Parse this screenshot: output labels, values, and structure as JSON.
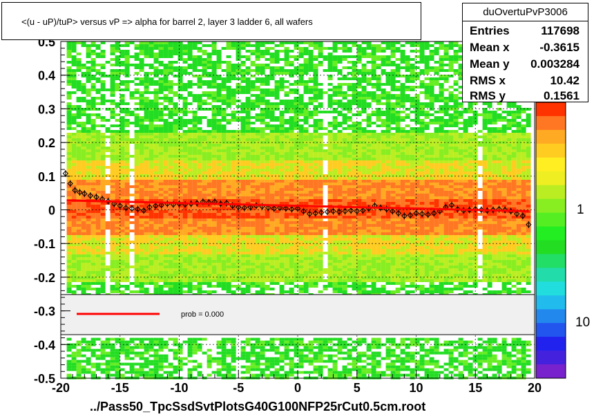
{
  "title": "<(u - uP)/tuP> versus   vP => alpha for barrel 2, layer 3 ladder 6, all wafers",
  "x_axis_title": "../Pass50_TpcSsdSvtPlotsG40G100NFP25rCut0.5cm.root",
  "stats": {
    "name": "duOvertuPvP3006",
    "rows": [
      {
        "label": "Entries",
        "value": "117698"
      },
      {
        "label": "Mean x",
        "value": "-0.3615"
      },
      {
        "label": "Mean y",
        "value": "0.003284"
      },
      {
        "label": "RMS x",
        "value": "10.42"
      },
      {
        "label": "RMS y",
        "value": "0.1561"
      }
    ]
  },
  "fit_legend": {
    "text": "prob = 0.000"
  },
  "colors": {
    "fit_line": "#ff0000",
    "low": "#22dd22",
    "mid": "#bbee22",
    "high": "#ff7722",
    "peak": "#ff3300",
    "legend_bg": "#f0f0f0"
  },
  "chart_data": {
    "type": "heatmap",
    "xlim": [
      -20,
      20
    ],
    "ylim": [
      -0.5,
      0.5
    ],
    "x_ticks": [
      -20,
      -15,
      -10,
      -5,
      0,
      5,
      10,
      15,
      20
    ],
    "x_tick_labels": [
      "-20",
      "-15",
      "-10",
      "-5",
      "0",
      "5",
      "10",
      "15",
      "20"
    ],
    "y_ticks": [
      -0.5,
      -0.4,
      -0.3,
      -0.2,
      -0.1,
      0,
      0.1,
      0.2,
      0.3,
      0.4,
      0.5
    ],
    "y_tick_labels": [
      "-0.5",
      "-0.4",
      "-0.3",
      "-0.2",
      "-0.1",
      "0",
      "0.1",
      "0.2",
      "0.3",
      "0.4",
      "0.5"
    ],
    "grid": true,
    "palette_labels": [
      "1",
      "10"
    ],
    "profile_points": [
      {
        "x": -19.6,
        "y": 0.108
      },
      {
        "x": -19.2,
        "y": 0.078
      },
      {
        "x": -18.8,
        "y": 0.058
      },
      {
        "x": -18.4,
        "y": 0.052
      },
      {
        "x": -18.0,
        "y": 0.048
      },
      {
        "x": -17.5,
        "y": 0.042
      },
      {
        "x": -17.0,
        "y": 0.038
      },
      {
        "x": -16.5,
        "y": 0.032
      },
      {
        "x": -16.0,
        "y": 0.026
      },
      {
        "x": -15.5,
        "y": 0.018
      },
      {
        "x": -15.0,
        "y": 0.012
      },
      {
        "x": -14.5,
        "y": 0.006
      },
      {
        "x": -14.0,
        "y": 0.004
      },
      {
        "x": -13.5,
        "y": 0.002
      },
      {
        "x": -13.0,
        "y": -0.002
      },
      {
        "x": -12.5,
        "y": 0.008
      },
      {
        "x": -12.0,
        "y": 0.012
      },
      {
        "x": -11.5,
        "y": 0.014
      },
      {
        "x": -11.0,
        "y": 0.018
      },
      {
        "x": -10.5,
        "y": 0.016
      },
      {
        "x": -10.0,
        "y": 0.018
      },
      {
        "x": -9.5,
        "y": 0.016
      },
      {
        "x": -9.0,
        "y": 0.018
      },
      {
        "x": -8.5,
        "y": 0.02
      },
      {
        "x": -8.0,
        "y": 0.024
      },
      {
        "x": -7.5,
        "y": 0.022
      },
      {
        "x": -7.0,
        "y": 0.024
      },
      {
        "x": -6.5,
        "y": 0.018
      },
      {
        "x": -6.0,
        "y": 0.02
      },
      {
        "x": -5.5,
        "y": 0.012
      },
      {
        "x": -5.0,
        "y": 0.008
      },
      {
        "x": -4.5,
        "y": 0.006
      },
      {
        "x": -4.0,
        "y": 0.008
      },
      {
        "x": -3.5,
        "y": 0.012
      },
      {
        "x": -3.0,
        "y": 0.01
      },
      {
        "x": -2.5,
        "y": 0.006
      },
      {
        "x": -2.0,
        "y": 0.004
      },
      {
        "x": -1.5,
        "y": 0.006
      },
      {
        "x": -1.0,
        "y": 0.004
      },
      {
        "x": -0.5,
        "y": 0.002
      },
      {
        "x": 0.0,
        "y": 0.004
      },
      {
        "x": 0.5,
        "y": -0.004
      },
      {
        "x": 1.0,
        "y": -0.012
      },
      {
        "x": 1.5,
        "y": -0.01
      },
      {
        "x": 2.0,
        "y": -0.008
      },
      {
        "x": 2.5,
        "y": -0.006
      },
      {
        "x": 3.0,
        "y": -0.004
      },
      {
        "x": 3.5,
        "y": -0.006
      },
      {
        "x": 4.0,
        "y": -0.004
      },
      {
        "x": 4.5,
        "y": -0.002
      },
      {
        "x": 5.0,
        "y": -0.004
      },
      {
        "x": 5.5,
        "y": -0.002
      },
      {
        "x": 6.0,
        "y": 0.004
      },
      {
        "x": 6.5,
        "y": 0.012
      },
      {
        "x": 7.0,
        "y": 0.006
      },
      {
        "x": 7.5,
        "y": 0.002
      },
      {
        "x": 8.0,
        "y": -0.004
      },
      {
        "x": 8.5,
        "y": -0.01
      },
      {
        "x": 9.0,
        "y": -0.018
      },
      {
        "x": 9.5,
        "y": -0.016
      },
      {
        "x": 10.0,
        "y": -0.01
      },
      {
        "x": 10.5,
        "y": -0.012
      },
      {
        "x": 11.0,
        "y": -0.014
      },
      {
        "x": 11.5,
        "y": -0.01
      },
      {
        "x": 12.0,
        "y": -0.004
      },
      {
        "x": 12.5,
        "y": 0.008
      },
      {
        "x": 13.0,
        "y": 0.014
      },
      {
        "x": 13.5,
        "y": 0.002
      },
      {
        "x": 14.0,
        "y": -0.002
      },
      {
        "x": 14.5,
        "y": 0.0
      },
      {
        "x": 15.0,
        "y": 0.002
      },
      {
        "x": 15.5,
        "y": 0.0
      },
      {
        "x": 16.0,
        "y": -0.002
      },
      {
        "x": 16.5,
        "y": 0.0
      },
      {
        "x": 17.0,
        "y": 0.002
      },
      {
        "x": 17.5,
        "y": 0.0
      },
      {
        "x": 18.0,
        "y": -0.004
      },
      {
        "x": 18.5,
        "y": -0.012
      },
      {
        "x": 19.0,
        "y": -0.018
      },
      {
        "x": 19.5,
        "y": -0.044
      }
    ],
    "fit_line": {
      "x": [
        -19.5,
        19.5
      ],
      "y": [
        0.028,
        -0.004
      ]
    },
    "band_ranges": {
      "x": [
        -19.5,
        19.5
      ],
      "y": [
        -0.25,
        0.5
      ],
      "lower_y": [
        -0.5,
        -0.38
      ]
    }
  }
}
